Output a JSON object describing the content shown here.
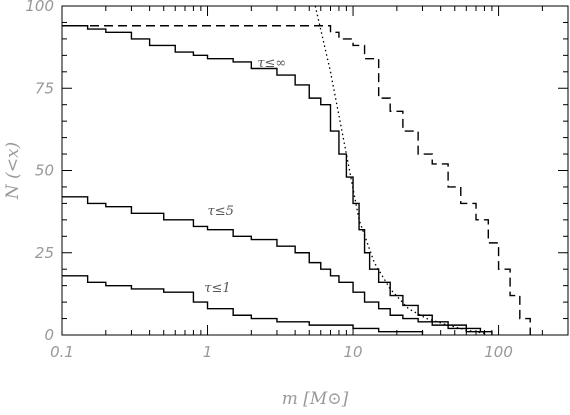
{
  "chart_data": {
    "type": "line",
    "title": "",
    "xlabel": "m [M⊙]",
    "ylabel": "N (<x)",
    "xscale": "log",
    "xlim": [
      0.1,
      300
    ],
    "ylim": [
      0,
      100
    ],
    "xticks": [
      {
        "value": 0.1,
        "label": "0.1"
      },
      {
        "value": 1,
        "label": "1"
      },
      {
        "value": 10,
        "label": "10"
      },
      {
        "value": 100,
        "label": "100"
      }
    ],
    "yticks": [
      {
        "value": 0,
        "label": "0"
      },
      {
        "value": 25,
        "label": "25"
      },
      {
        "value": 50,
        "label": "50"
      },
      {
        "value": 75,
        "label": "75"
      },
      {
        "value": 100,
        "label": "100"
      }
    ],
    "grid": false,
    "legend": "none",
    "series": [
      {
        "label_on_chart": "τ≤∞",
        "style": "solid",
        "points": [
          [
            0.1,
            94
          ],
          [
            0.15,
            93
          ],
          [
            0.2,
            92
          ],
          [
            0.3,
            90
          ],
          [
            0.4,
            88
          ],
          [
            0.6,
            86
          ],
          [
            0.8,
            85
          ],
          [
            1.0,
            84
          ],
          [
            1.5,
            83
          ],
          [
            2.0,
            81
          ],
          [
            3.0,
            79
          ],
          [
            4.0,
            76
          ],
          [
            5.0,
            72
          ],
          [
            6.0,
            70
          ],
          [
            7.0,
            62
          ],
          [
            8.0,
            55
          ],
          [
            9.0,
            48
          ],
          [
            10.0,
            40
          ],
          [
            11.0,
            32
          ],
          [
            12.0,
            25
          ],
          [
            13.0,
            20
          ],
          [
            15.0,
            16
          ],
          [
            18.0,
            12
          ],
          [
            22.0,
            9
          ],
          [
            28.0,
            6
          ],
          [
            35.0,
            4
          ],
          [
            45.0,
            3
          ],
          [
            60.0,
            2
          ],
          [
            75.0,
            1
          ],
          [
            90.0,
            0
          ]
        ]
      },
      {
        "label_on_chart": "τ≤5",
        "style": "solid",
        "points": [
          [
            0.1,
            42
          ],
          [
            0.15,
            40
          ],
          [
            0.2,
            39
          ],
          [
            0.3,
            37
          ],
          [
            0.5,
            35
          ],
          [
            0.8,
            33
          ],
          [
            1.0,
            32
          ],
          [
            1.5,
            30
          ],
          [
            2.0,
            29
          ],
          [
            3.0,
            27
          ],
          [
            4.0,
            25
          ],
          [
            5.0,
            22
          ],
          [
            6.0,
            20
          ],
          [
            7.0,
            18
          ],
          [
            8.0,
            16
          ],
          [
            10.0,
            13
          ],
          [
            12.0,
            10
          ],
          [
            15.0,
            8
          ],
          [
            18.0,
            6
          ],
          [
            22.0,
            5
          ],
          [
            28.0,
            4
          ],
          [
            35.0,
            3
          ],
          [
            45.0,
            2
          ],
          [
            60.0,
            1
          ],
          [
            80.0,
            0
          ]
        ]
      },
      {
        "label_on_chart": "τ≤1",
        "style": "solid",
        "points": [
          [
            0.1,
            18
          ],
          [
            0.15,
            16
          ],
          [
            0.2,
            15
          ],
          [
            0.3,
            14
          ],
          [
            0.5,
            13
          ],
          [
            0.8,
            10
          ],
          [
            1.0,
            8
          ],
          [
            1.5,
            6
          ],
          [
            2.0,
            5
          ],
          [
            3.0,
            4
          ],
          [
            4.0,
            4
          ],
          [
            5.0,
            3
          ],
          [
            7.0,
            3
          ],
          [
            10.0,
            2
          ],
          [
            15.0,
            1
          ],
          [
            22.0,
            1
          ],
          [
            30.0,
            0
          ]
        ]
      },
      {
        "style": "dashed",
        "points": [
          [
            0.1,
            94
          ],
          [
            1.0,
            94
          ],
          [
            1.4,
            94
          ],
          [
            6.0,
            94
          ],
          [
            6.5,
            94
          ],
          [
            7.0,
            92
          ],
          [
            8.0,
            90
          ],
          [
            10.0,
            88
          ],
          [
            12.0,
            84
          ],
          [
            15.0,
            72
          ],
          [
            18.0,
            68
          ],
          [
            22.0,
            62
          ],
          [
            28.0,
            55
          ],
          [
            35.0,
            52
          ],
          [
            45.0,
            45
          ],
          [
            55.0,
            40
          ],
          [
            70.0,
            35
          ],
          [
            85.0,
            28
          ],
          [
            100.0,
            20
          ],
          [
            120.0,
            12
          ],
          [
            140.0,
            5
          ],
          [
            165.0,
            0
          ]
        ]
      },
      {
        "style": "dotted",
        "points": [
          [
            5.5,
            100
          ],
          [
            7.0,
            80
          ],
          [
            9.0,
            55
          ],
          [
            11.0,
            35
          ],
          [
            14.0,
            22
          ],
          [
            18.0,
            14
          ],
          [
            24.0,
            8
          ],
          [
            32.0,
            5
          ],
          [
            45.0,
            3
          ],
          [
            60.0,
            1.5
          ],
          [
            80.0,
            0.5
          ]
        ]
      }
    ]
  }
}
